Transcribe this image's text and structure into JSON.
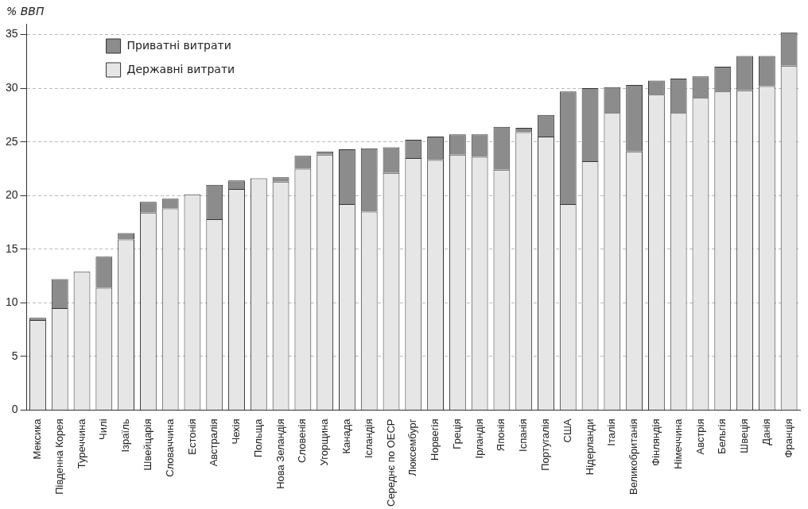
{
  "chart_data": {
    "type": "bar",
    "stacked": true,
    "ylabel": "% ВВП",
    "categories": [
      "Мексика",
      "Південна Корея",
      "Туреччина",
      "Чилі",
      "Ізраїль",
      "Швейцарія",
      "Словаччина",
      "Естонія",
      "Австралія",
      "Чехія",
      "Польща",
      "Нова Зеландія",
      "Словенія",
      "Угорщина",
      "Канада",
      "Ісландія",
      "Середнє по ОЕСР",
      "Люксембург",
      "Норвегія",
      "Греція",
      "Ірландія",
      "Японія",
      "Іспанія",
      "Португалія",
      "США",
      "Нідерланди",
      "Італія",
      "Великобританія",
      "Фінляндія",
      "Німеччина",
      "Австрія",
      "Бельгія",
      "Швеція",
      "Данія",
      "Франція"
    ],
    "series": [
      {
        "name": "Державні витрати",
        "color": "#e6e6e6",
        "values": [
          8.4,
          9.5,
          12.9,
          11.4,
          15.9,
          18.4,
          18.8,
          20.1,
          17.8,
          20.6,
          21.6,
          21.3,
          22.5,
          23.8,
          19.2,
          18.5,
          22.1,
          23.5,
          23.3,
          23.8,
          23.6,
          22.4,
          25.9,
          25.5,
          19.2,
          23.2,
          27.7,
          24.1,
          29.4,
          27.7,
          29.1,
          29.7,
          29.8,
          30.2,
          32.1
        ]
      },
      {
        "name": "Приватні витрати",
        "color": "#8c8c8c",
        "values": [
          0.2,
          2.7,
          0,
          2.9,
          0.6,
          1.0,
          0.9,
          0,
          3.2,
          0.8,
          0,
          0.4,
          1.2,
          0.3,
          5.1,
          5.9,
          2.4,
          1.7,
          2.2,
          1.9,
          2.1,
          4.0,
          0.4,
          2.0,
          10.5,
          6.8,
          2.4,
          6.2,
          1.3,
          3.2,
          2.0,
          2.3,
          3.2,
          2.8,
          3.1
        ]
      }
    ],
    "ylim": [
      0,
      36
    ],
    "yticks": [
      0,
      5,
      10,
      15,
      20,
      25,
      30,
      35
    ],
    "grid": "y",
    "legend": "top left"
  }
}
